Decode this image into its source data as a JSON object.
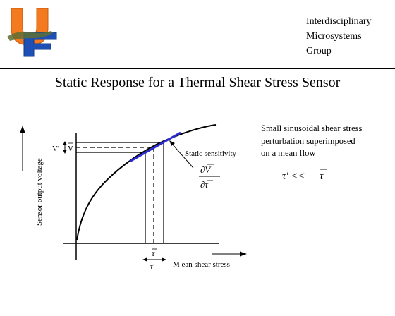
{
  "header": {
    "group_name_lines": [
      "Interdisciplinary",
      "Microsystems",
      "Group"
    ],
    "logo_letters": "UF"
  },
  "title": "Static Response for a Thermal Shear Stress Sensor",
  "diagram": {
    "y_axis_label": "Sensor output voltage",
    "x_axis_label": "M ean shear stress",
    "v_prime_label": "V'",
    "v_bar_label": "V",
    "tau_bar_label": "τ",
    "tau_prime_label": "τ'",
    "static_sensitivity_label": "Static sensitivity",
    "derivative_numerator": "∂V",
    "derivative_denominator": "∂τ",
    "tangent_color": "#2a2ad2"
  },
  "note": {
    "lines": [
      "Small sinusoidal shear stress",
      "perturbation superimposed",
      "on a mean flow"
    ],
    "relation_left": "τ' <<",
    "relation_right": "τ"
  }
}
